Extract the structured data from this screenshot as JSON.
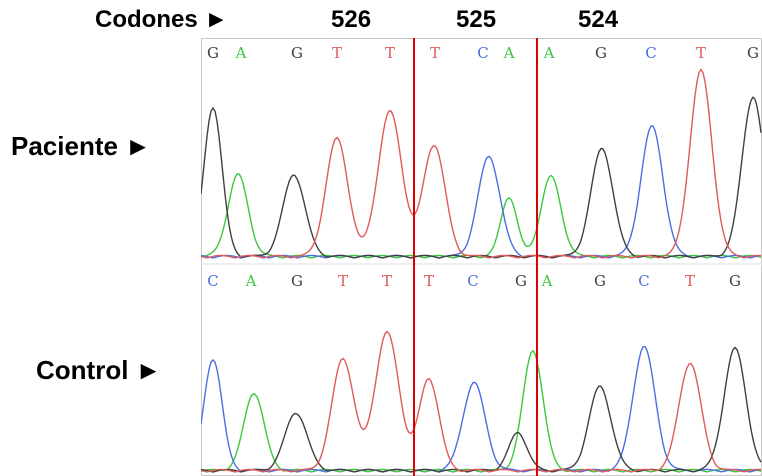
{
  "header": {
    "codones_label": "Codones ►",
    "codons": [
      "526",
      "525",
      "524"
    ]
  },
  "rows": {
    "patient_label": "Paciente ►",
    "control_label": "Control ►"
  },
  "sequences": {
    "patient": [
      "G",
      "A",
      "G",
      "T",
      "T",
      "T",
      "C",
      "A",
      "A",
      "G",
      "C",
      "T",
      "G"
    ],
    "control": [
      "C",
      "A",
      "G",
      "T",
      "T",
      "T",
      "C",
      "G",
      "A",
      "G",
      "C",
      "T",
      "G"
    ]
  },
  "base_colors": {
    "A": "#3cc83c",
    "C": "#4a6fe0",
    "G": "#404040",
    "T": "#e05a5a"
  },
  "marker_color": "#dd0000"
}
